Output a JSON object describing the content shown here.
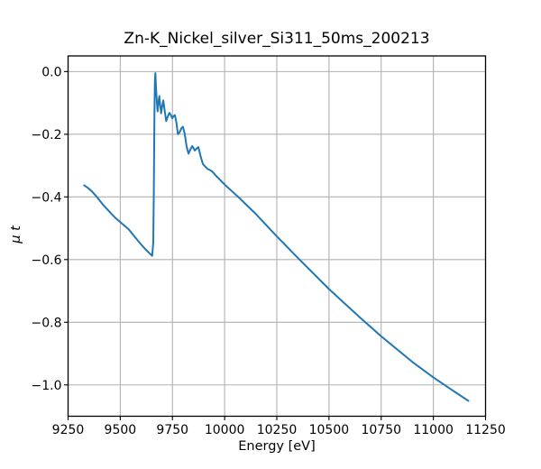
{
  "figure": {
    "background": "#ffffff"
  },
  "chart_data": {
    "type": "line",
    "title": "Zn-K_Nickel_silver_Si311_50ms_200213",
    "xlabel": "Energy [eV]",
    "ylabel": "μ t",
    "xlim": [
      9250,
      11250
    ],
    "ylim": [
      -1.1,
      0.05
    ],
    "xticks": [
      9250,
      9500,
      9750,
      10000,
      10250,
      10500,
      10750,
      11000,
      11250
    ],
    "yticks": [
      0.0,
      -0.2,
      -0.4,
      -0.6,
      -0.8,
      -1.0
    ],
    "grid": true,
    "legend": "none",
    "colors": {
      "line": "#1f77b4",
      "grid": "#b0b0b0",
      "axis": "#000000",
      "text": "#000000"
    },
    "series": [
      {
        "name": "absorption-mu-t",
        "points": [
          [
            9327,
            -0.363
          ],
          [
            9345,
            -0.371
          ],
          [
            9365,
            -0.383
          ],
          [
            9385,
            -0.398
          ],
          [
            9420,
            -0.427
          ],
          [
            9455,
            -0.452
          ],
          [
            9478,
            -0.468
          ],
          [
            9510,
            -0.486
          ],
          [
            9540,
            -0.503
          ],
          [
            9570,
            -0.528
          ],
          [
            9600,
            -0.552
          ],
          [
            9625,
            -0.57
          ],
          [
            9645,
            -0.583
          ],
          [
            9653,
            -0.588
          ],
          [
            9658,
            -0.545
          ],
          [
            9661,
            -0.38
          ],
          [
            9664,
            -0.13
          ],
          [
            9666,
            -0.03
          ],
          [
            9668,
            -0.005
          ],
          [
            9672,
            -0.062
          ],
          [
            9677,
            -0.115
          ],
          [
            9679,
            -0.127
          ],
          [
            9683,
            -0.1
          ],
          [
            9687,
            -0.078
          ],
          [
            9691,
            -0.105
          ],
          [
            9696,
            -0.133
          ],
          [
            9701,
            -0.11
          ],
          [
            9706,
            -0.092
          ],
          [
            9712,
            -0.122
          ],
          [
            9720,
            -0.158
          ],
          [
            9727,
            -0.145
          ],
          [
            9735,
            -0.132
          ],
          [
            9742,
            -0.138
          ],
          [
            9749,
            -0.149
          ],
          [
            9756,
            -0.142
          ],
          [
            9762,
            -0.139
          ],
          [
            9769,
            -0.162
          ],
          [
            9776,
            -0.2
          ],
          [
            9784,
            -0.194
          ],
          [
            9793,
            -0.181
          ],
          [
            9800,
            -0.176
          ],
          [
            9808,
            -0.196
          ],
          [
            9818,
            -0.24
          ],
          [
            9827,
            -0.262
          ],
          [
            9836,
            -0.248
          ],
          [
            9845,
            -0.238
          ],
          [
            9852,
            -0.246
          ],
          [
            9857,
            -0.252
          ],
          [
            9865,
            -0.246
          ],
          [
            9874,
            -0.241
          ],
          [
            9884,
            -0.268
          ],
          [
            9896,
            -0.295
          ],
          [
            9917,
            -0.31
          ],
          [
            9939,
            -0.318
          ],
          [
            9961,
            -0.334
          ],
          [
            10004,
            -0.363
          ],
          [
            10070,
            -0.403
          ],
          [
            10150,
            -0.455
          ],
          [
            10250,
            -0.526
          ],
          [
            10350,
            -0.594
          ],
          [
            10500,
            -0.694
          ],
          [
            10650,
            -0.786
          ],
          [
            10750,
            -0.845
          ],
          [
            10900,
            -0.927
          ],
          [
            11000,
            -0.976
          ],
          [
            11080,
            -1.012
          ],
          [
            11168,
            -1.051
          ]
        ]
      }
    ]
  }
}
